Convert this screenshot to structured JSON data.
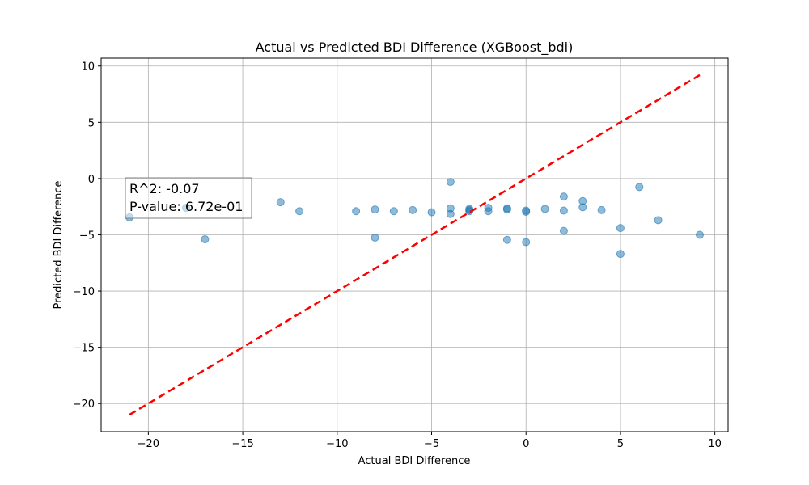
{
  "chart_data": {
    "type": "scatter",
    "title": "Actual vs Predicted BDI Difference (XGBoost_bdi)",
    "xlabel": "Actual BDI Difference",
    "ylabel": "Predicted BDI Difference",
    "xlim": [
      -22.5,
      10.7
    ],
    "ylim": [
      -22.5,
      10.7
    ],
    "xticks": [
      -20,
      -15,
      -10,
      -5,
      0,
      5,
      10
    ],
    "yticks": [
      -20,
      -15,
      -10,
      -5,
      0,
      5,
      10
    ],
    "grid": true,
    "point_color": "#1f77b4",
    "line_color": "#ff0000",
    "points": [
      {
        "x": -21,
        "y": -3.45
      },
      {
        "x": -18,
        "y": -2.6
      },
      {
        "x": -17,
        "y": -5.4
      },
      {
        "x": -13,
        "y": -2.1
      },
      {
        "x": -12,
        "y": -2.9
      },
      {
        "x": -9,
        "y": -2.9
      },
      {
        "x": -8,
        "y": -2.75
      },
      {
        "x": -8,
        "y": -5.25
      },
      {
        "x": -7,
        "y": -2.9
      },
      {
        "x": -6,
        "y": -2.8
      },
      {
        "x": -5,
        "y": -3.0
      },
      {
        "x": -4,
        "y": -0.3
      },
      {
        "x": -4,
        "y": -2.65
      },
      {
        "x": -4,
        "y": -3.15
      },
      {
        "x": -3,
        "y": -2.7
      },
      {
        "x": -3,
        "y": -2.8
      },
      {
        "x": -3,
        "y": -2.9
      },
      {
        "x": -2,
        "y": -2.6
      },
      {
        "x": -2,
        "y": -2.9
      },
      {
        "x": -1,
        "y": -2.65
      },
      {
        "x": -1,
        "y": -2.75
      },
      {
        "x": -1,
        "y": -5.45
      },
      {
        "x": 0,
        "y": -2.85
      },
      {
        "x": 0,
        "y": -2.95
      },
      {
        "x": 0,
        "y": -5.65
      },
      {
        "x": 1,
        "y": -2.7
      },
      {
        "x": 2,
        "y": -1.6
      },
      {
        "x": 2,
        "y": -2.85
      },
      {
        "x": 2,
        "y": -4.65
      },
      {
        "x": 3,
        "y": -2.0
      },
      {
        "x": 3,
        "y": -2.55
      },
      {
        "x": 4,
        "y": -2.8
      },
      {
        "x": 5,
        "y": -4.4
      },
      {
        "x": 5,
        "y": -6.7
      },
      {
        "x": 6,
        "y": -0.75
      },
      {
        "x": 7,
        "y": -3.7
      },
      {
        "x": 9.2,
        "y": -5.0
      }
    ],
    "reference_line": {
      "x": [
        -21,
        9.2
      ],
      "y": [
        -21,
        9.2
      ]
    },
    "annotation": {
      "line1": "R^2: -0.07",
      "line2": "P-value: 6.72e-01"
    }
  }
}
